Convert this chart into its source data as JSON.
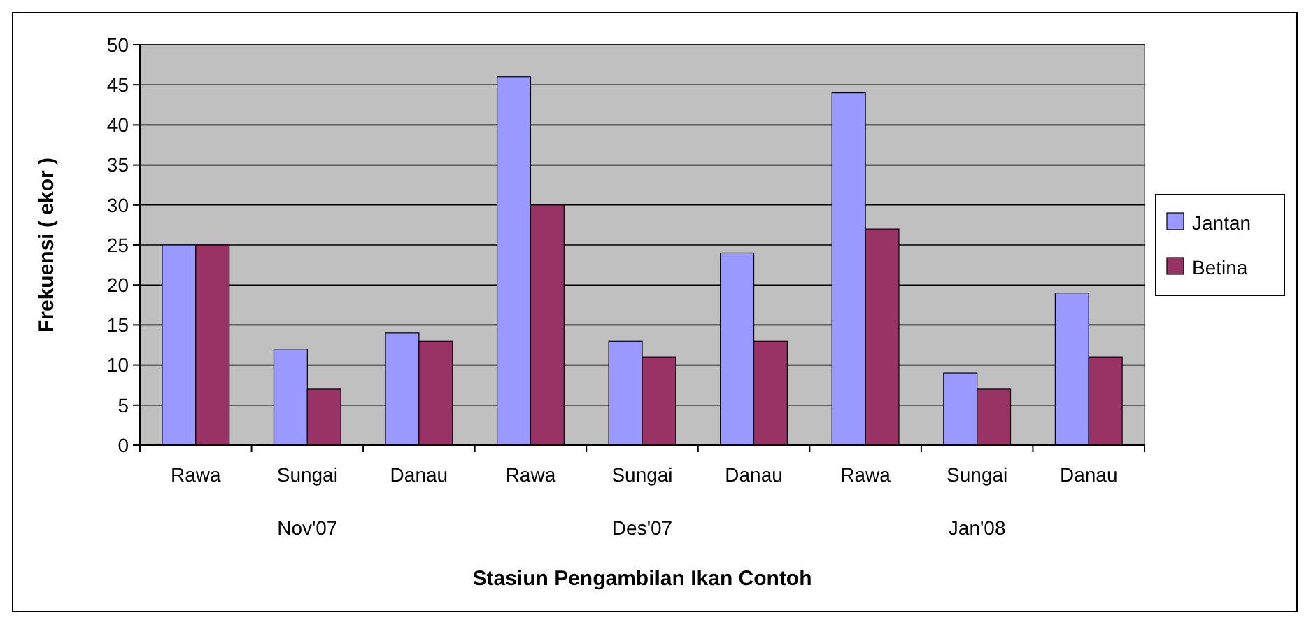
{
  "chart_data": {
    "type": "bar",
    "xlabel": "Stasiun Pengambilan Ikan Contoh",
    "ylabel": "Frekuensi ( ekor )",
    "categories": [
      "Rawa",
      "Sungai",
      "Danau",
      "Rawa",
      "Sungai",
      "Danau",
      "Rawa",
      "Sungai",
      "Danau"
    ],
    "series": [
      {
        "name": "Jantan",
        "color": "#9999ff",
        "values": [
          25,
          12,
          14,
          46,
          13,
          24,
          44,
          9,
          19
        ]
      },
      {
        "name": "Betina",
        "color": "#993366",
        "values": [
          25,
          7,
          13,
          30,
          11,
          13,
          27,
          7,
          11
        ]
      }
    ],
    "ylim": [
      0,
      50
    ],
    "yticks": [
      0,
      5,
      10,
      15,
      20,
      25,
      30,
      35,
      40,
      45,
      50
    ],
    "grid": "y",
    "legend": "right",
    "annotations": [
      "Nov'07",
      "Des'07",
      "Jan'08"
    ]
  }
}
